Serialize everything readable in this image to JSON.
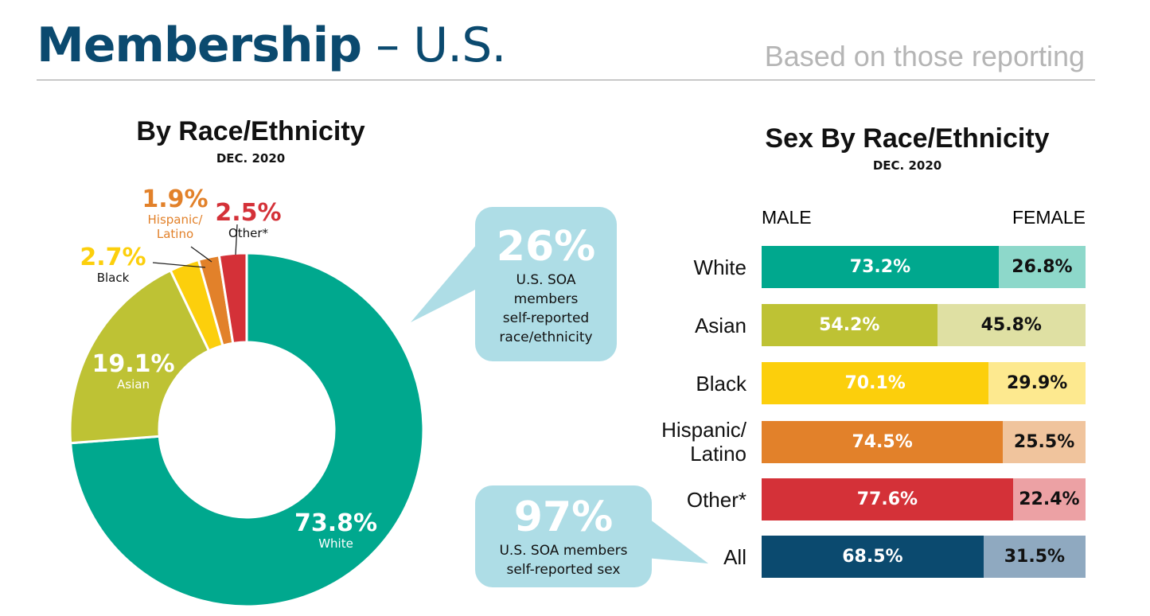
{
  "header": {
    "title_bold": "Membership",
    "title_rest": " – U.S.",
    "subtitle": "Based on those reporting"
  },
  "colors": {
    "white": "#00a88e",
    "asian": "#bec234",
    "black": "#fccf0c",
    "hispanic": "#e2812a",
    "other": "#d43138",
    "all": "#0b4a6f"
  },
  "bubbles": [
    {
      "value": "26%",
      "text": "U.S. SOA members self-reported race/ethnicity"
    },
    {
      "value": "97%",
      "text": "U.S. SOA members self-reported sex"
    }
  ],
  "chart_data": [
    {
      "type": "pie",
      "title": "By Race/Ethnicity",
      "subtitle": "DEC. 2020",
      "donut": true,
      "categories": [
        "White",
        "Asian",
        "Black",
        "Hispanic/ Latino",
        "Other*"
      ],
      "values": [
        73.8,
        19.1,
        2.7,
        1.9,
        2.5
      ],
      "labels": [
        "73.8%",
        "19.1%",
        "2.7%",
        "1.9%",
        "2.5%"
      ],
      "colors": [
        "#00a88e",
        "#bec234",
        "#fccf0c",
        "#e2812a",
        "#d43138"
      ]
    },
    {
      "type": "bar",
      "stacked": true,
      "orientation": "horizontal",
      "title": "Sex By Race/Ethnicity",
      "subtitle": "DEC. 2020",
      "legend": [
        "MALE",
        "FEMALE"
      ],
      "categories": [
        "White",
        "Asian",
        "Black",
        "Hispanic/ Latino",
        "Other*",
        "All"
      ],
      "series": [
        {
          "name": "MALE",
          "values": [
            73.2,
            54.2,
            70.1,
            74.5,
            77.6,
            68.5
          ],
          "labels": [
            "73.2%",
            "54.2%",
            "70.1%",
            "74.5%",
            "77.6%",
            "68.5%"
          ],
          "colors": [
            "#00a88e",
            "#bec234",
            "#fccf0c",
            "#e2812a",
            "#d43138",
            "#0b4a6f"
          ]
        },
        {
          "name": "FEMALE",
          "values": [
            26.8,
            45.8,
            29.9,
            25.5,
            22.4,
            31.5
          ],
          "labels": [
            "26.8%",
            "45.8%",
            "29.9%",
            "25.5%",
            "22.4%",
            "31.5%"
          ],
          "colors": [
            "#8dd8ca",
            "#dfe0a3",
            "#fde98f",
            "#f0c49d",
            "#eca1a4",
            "#8fa9c0"
          ]
        }
      ]
    }
  ]
}
